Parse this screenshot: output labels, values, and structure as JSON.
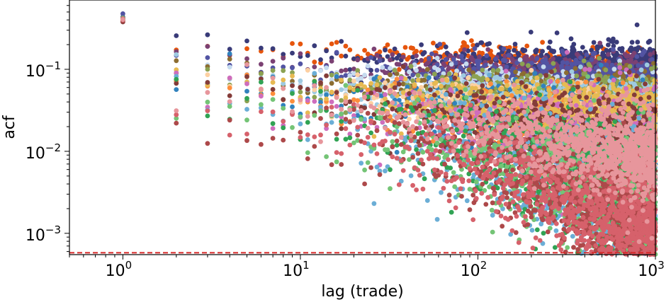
{
  "chart_data": {
    "type": "scatter",
    "title": "",
    "xlabel": "lag (trade)",
    "ylabel": "acf",
    "xscale": "log",
    "yscale": "log",
    "xlim": [
      0.5,
      1000
    ],
    "ylim": [
      0.00055,
      0.7
    ],
    "grid": false,
    "legend": "none",
    "x_ticks": [
      {
        "value": 1,
        "base": "10",
        "exp": "0"
      },
      {
        "value": 10,
        "base": "10",
        "exp": "1"
      },
      {
        "value": 100,
        "base": "10",
        "exp": "2"
      },
      {
        "value": 1000,
        "base": "10",
        "exp": "3"
      }
    ],
    "y_ticks": [
      {
        "value": 0.001,
        "base": "10",
        "exp": "−3"
      },
      {
        "value": 0.01,
        "base": "10",
        "exp": "−2"
      },
      {
        "value": 0.1,
        "base": "10",
        "exp": "−1"
      }
    ],
    "threshold_line": {
      "y": 0.00058,
      "color": "#d62728",
      "style": "dashed"
    },
    "series": [
      {
        "color": "#e6550d",
        "lag1": 0.38,
        "lag2": 0.19,
        "lag10": 0.16,
        "lag100": 0.14,
        "lag1000": 0.062,
        "noise": 0.08
      },
      {
        "color": "#393b79",
        "lag1": 0.42,
        "lag2": 0.26,
        "lag10": 0.15,
        "lag100": 0.11,
        "lag1000": 0.085,
        "noise": 0.09
      },
      {
        "color": "#7b4173",
        "lag1": 0.41,
        "lag2": 0.17,
        "lag10": 0.12,
        "lag100": 0.1,
        "lag1000": 0.06,
        "noise": 0.08
      },
      {
        "color": "#5254a3",
        "lag1": 0.44,
        "lag2": 0.14,
        "lag10": 0.1,
        "lag100": 0.085,
        "lag1000": 0.05,
        "noise": 0.09
      },
      {
        "color": "#c6dbef",
        "lag1": 0.43,
        "lag2": 0.13,
        "lag10": 0.085,
        "lag100": 0.07,
        "lag1000": 0.03,
        "noise": 0.08
      },
      {
        "color": "#8c6d31",
        "lag1": 0.4,
        "lag2": 0.11,
        "lag10": 0.07,
        "lag100": 0.045,
        "lag1000": 0.03,
        "noise": 0.1
      },
      {
        "color": "#8ca252",
        "lag1": 0.42,
        "lag2": 0.1,
        "lag10": 0.06,
        "lag100": 0.05,
        "lag1000": 0.028,
        "noise": 0.11
      },
      {
        "color": "#9ecae1",
        "lag1": 0.44,
        "lag2": 0.12,
        "lag10": 0.06,
        "lag100": 0.04,
        "lag1000": 0.025,
        "noise": 0.1
      },
      {
        "color": "#3182bd",
        "lag1": 0.43,
        "lag2": 0.09,
        "lag10": 0.05,
        "lag100": 0.03,
        "lag1000": 0.012,
        "noise": 0.15
      },
      {
        "color": "#fdd0a2",
        "lag1": 0.41,
        "lag2": 0.08,
        "lag10": 0.055,
        "lag100": 0.035,
        "lag1000": 0.016,
        "noise": 0.1
      },
      {
        "color": "#fd8d3c",
        "lag1": 0.4,
        "lag2": 0.085,
        "lag10": 0.045,
        "lag100": 0.025,
        "lag1000": 0.011,
        "noise": 0.13
      },
      {
        "color": "#e7ba52",
        "lag1": 0.42,
        "lag2": 0.09,
        "lag10": 0.06,
        "lag100": 0.035,
        "lag1000": 0.02,
        "noise": 0.12
      },
      {
        "color": "#ce6dbd",
        "lag1": 0.41,
        "lag2": 0.07,
        "lag10": 0.04,
        "lag100": 0.018,
        "lag1000": 0.006,
        "noise": 0.18
      },
      {
        "color": "#843c39",
        "lag1": 0.4,
        "lag2": 0.08,
        "lag10": 0.045,
        "lag100": 0.022,
        "lag1000": 0.008,
        "noise": 0.16
      },
      {
        "color": "#6baed6",
        "lag1": 0.42,
        "lag2": 0.06,
        "lag10": 0.03,
        "lag100": 0.008,
        "lag1000": 0.002,
        "noise": 0.22
      },
      {
        "color": "#31a354",
        "lag1": 0.42,
        "lag2": 0.05,
        "lag10": 0.03,
        "lag100": 0.012,
        "lag1000": 0.003,
        "noise": 0.2
      },
      {
        "color": "#74c476",
        "lag1": 0.43,
        "lag2": 0.045,
        "lag10": 0.025,
        "lag100": 0.008,
        "lag1000": 0.0019,
        "noise": 0.2
      },
      {
        "color": "#ad494a",
        "lag1": 0.4,
        "lag2": 0.021,
        "lag10": 0.016,
        "lag100": 0.008,
        "lag1000": 0.0012,
        "noise": 0.18
      },
      {
        "color": "#d6616b",
        "lag1": 0.41,
        "lag2": 0.03,
        "lag10": 0.02,
        "lag100": 0.006,
        "lag1000": 0.001,
        "noise": 0.18
      },
      {
        "color": "#e7969c",
        "lag1": 0.41,
        "lag2": 0.065,
        "lag10": 0.04,
        "lag100": 0.02,
        "lag1000": 0.009,
        "noise": 0.14
      }
    ]
  }
}
